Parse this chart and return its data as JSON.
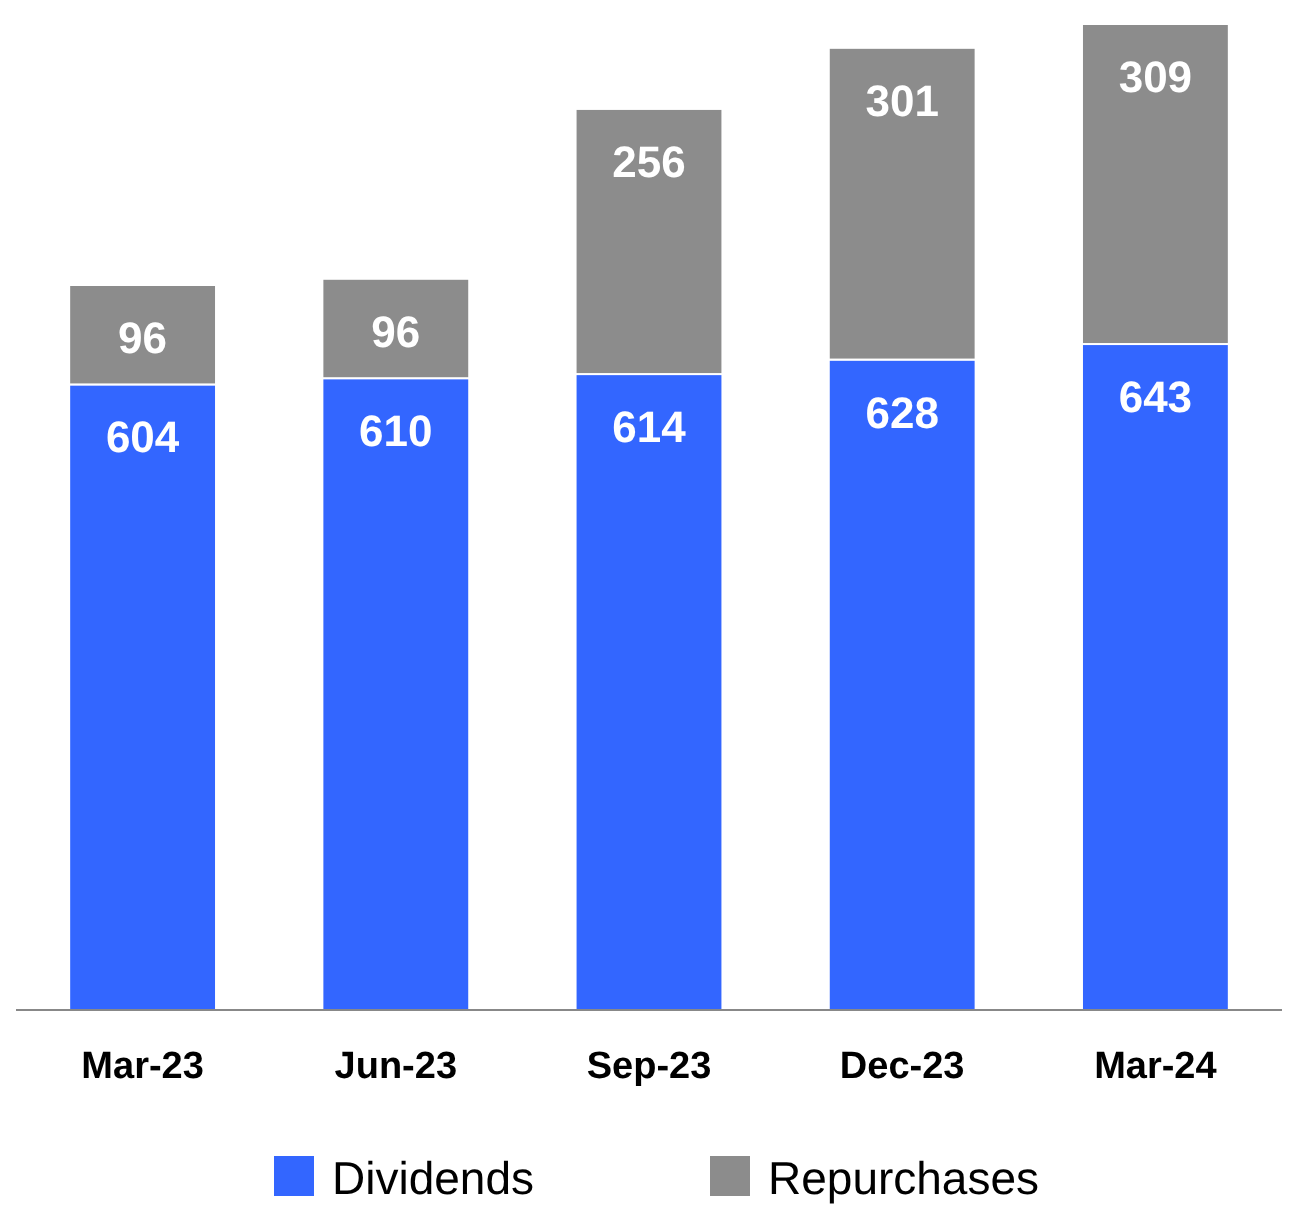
{
  "chart_data": {
    "type": "bar",
    "stacked": true,
    "data_labels": true,
    "legend": "bottom",
    "categories": [
      "Mar-23",
      "Jun-23",
      "Sep-23",
      "Dec-23",
      "Mar-24"
    ],
    "series": [
      {
        "name": "Dividends",
        "color": "#3366ff",
        "values": [
          604,
          610,
          614,
          628,
          643
        ]
      },
      {
        "name": "Repurchases",
        "color": "#8c8c8c",
        "values": [
          96,
          96,
          256,
          301,
          309
        ]
      }
    ]
  }
}
